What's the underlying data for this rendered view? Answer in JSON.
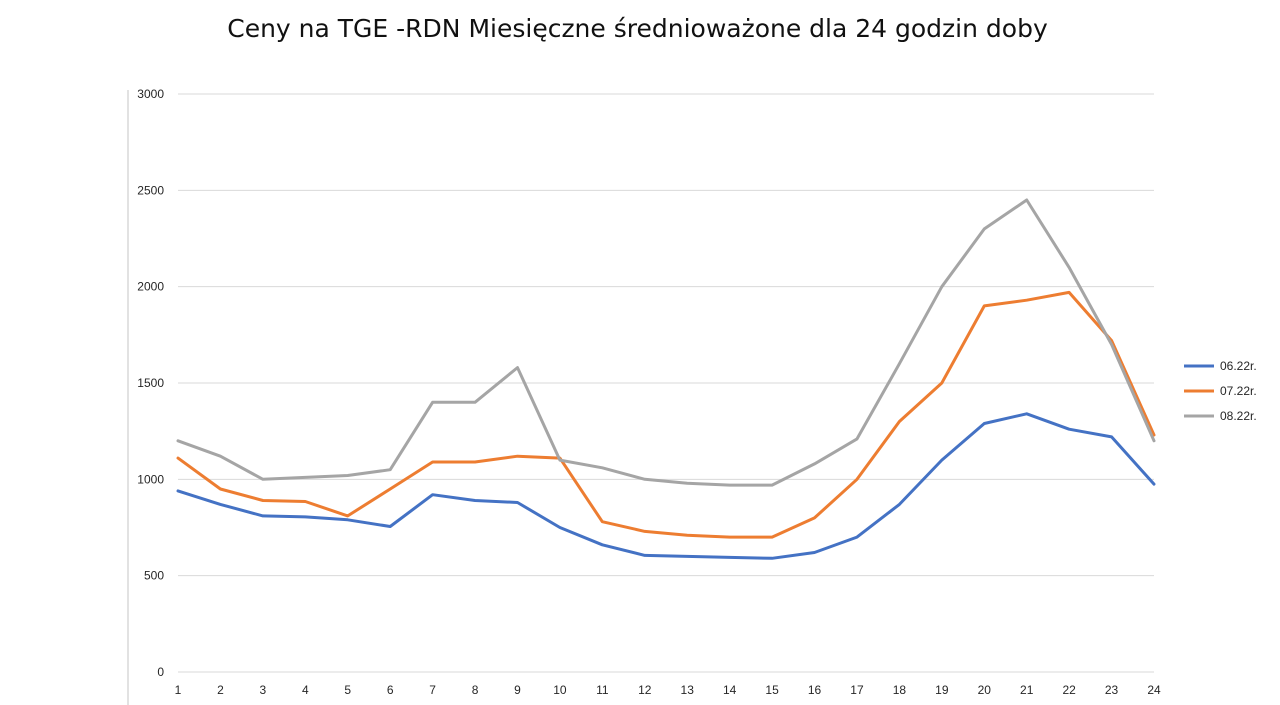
{
  "chart_data": {
    "type": "line",
    "title": "Ceny na TGE -RDN Miesięczne średnioważone dla 24 godzin doby",
    "xlabel": "",
    "ylabel": "",
    "x": [
      1,
      2,
      3,
      4,
      5,
      6,
      7,
      8,
      9,
      10,
      11,
      12,
      13,
      14,
      15,
      16,
      17,
      18,
      19,
      20,
      21,
      22,
      23,
      24
    ],
    "ylim": [
      0,
      3000
    ],
    "yticks": [
      0,
      500,
      1000,
      1500,
      2000,
      2500,
      3000
    ],
    "grid": true,
    "legend_position": "right",
    "series": [
      {
        "name": "06.22r.",
        "color": "#4472C4",
        "values": [
          940,
          870,
          810,
          805,
          790,
          755,
          920,
          890,
          880,
          750,
          660,
          605,
          600,
          595,
          590,
          620,
          700,
          870,
          1100,
          1290,
          1340,
          1260,
          1220,
          975
        ]
      },
      {
        "name": "07.22r.",
        "color": "#ED7D31",
        "values": [
          1110,
          950,
          890,
          885,
          810,
          950,
          1090,
          1090,
          1120,
          1110,
          780,
          730,
          710,
          700,
          700,
          800,
          1000,
          1300,
          1500,
          1900,
          1930,
          1970,
          1720,
          1230
        ]
      },
      {
        "name": "08.22r.",
        "color": "#A5A5A5",
        "values": [
          1200,
          1120,
          1000,
          1010,
          1020,
          1050,
          1400,
          1400,
          1580,
          1100,
          1060,
          1000,
          980,
          970,
          970,
          1080,
          1210,
          1600,
          2000,
          2300,
          2450,
          2100,
          1700,
          1200
        ]
      }
    ]
  }
}
